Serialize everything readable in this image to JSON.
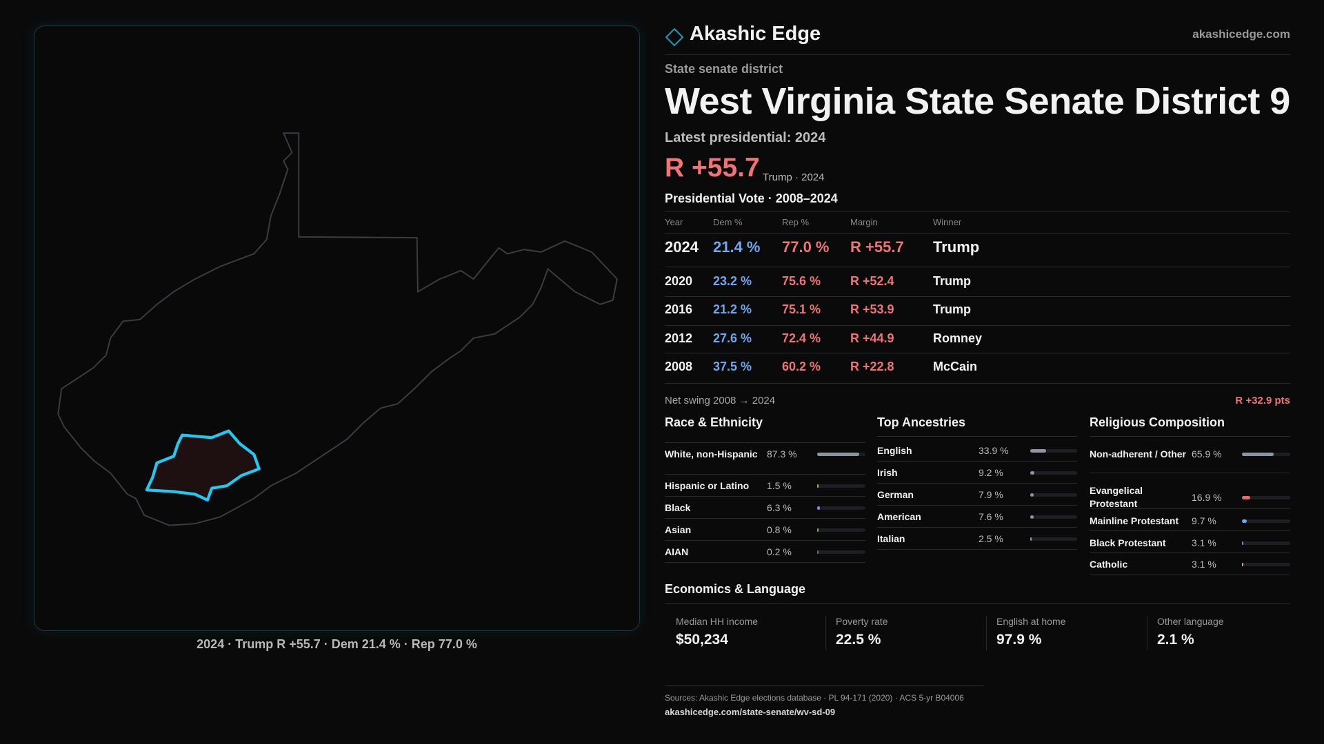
{
  "header": {
    "brand": "Akashic Edge",
    "domain": "akashicedge.com"
  },
  "map": {
    "caption": "2024 · Trump R +55.7 · Dem 21.4 % · Rep 77.0 %"
  },
  "district": {
    "kind": "State senate district",
    "title": "West Virginia State Senate District 9",
    "latest": "Latest presidential: 2024",
    "margin": "R +55.7",
    "margin_note": "Trump · 2024"
  },
  "presidential": {
    "title": "Presidential Vote · 2008–2024",
    "columns": [
      "Year",
      "Dem %",
      "Rep %",
      "Margin",
      "Winner"
    ],
    "rows": [
      [
        "2024",
        "21.4 %",
        "77.0 %",
        "R +55.7",
        "Trump"
      ],
      [
        "2020",
        "23.2 %",
        "75.6 %",
        "R +52.4",
        "Trump"
      ],
      [
        "2016",
        "21.2 %",
        "75.1 %",
        "R +53.9",
        "Trump"
      ],
      [
        "2012",
        "27.6 %",
        "72.4 %",
        "R +44.9",
        "Romney"
      ],
      [
        "2008",
        "37.5 %",
        "60.2 %",
        "R +22.8",
        "McCain"
      ]
    ]
  },
  "swing": {
    "label": "Net swing 2008 → 2024",
    "value": "R +32.9 pts"
  },
  "race": {
    "title": "Race & Ethnicity",
    "rows": [
      {
        "label": "White, non-Hispanic",
        "value": "87.3 %",
        "color": "#8d96a3"
      },
      {
        "label": "Hispanic or Latino",
        "value": "1.5 %",
        "color": "#c9a23c"
      },
      {
        "label": "Black",
        "value": "6.3 %",
        "color": "#8a7ff0"
      },
      {
        "label": "Asian",
        "value": "0.8 %",
        "color": "#4fbf7a"
      },
      {
        "label": "AIAN",
        "value": "0.2 %",
        "color": "#6a6f78"
      }
    ]
  },
  "ancestries": {
    "title": "Top Ancestries",
    "rows": [
      {
        "label": "English",
        "value": "33.9 %",
        "color": "#8d96a3"
      },
      {
        "label": "Irish",
        "value": "9.2 %",
        "color": "#8d96a3"
      },
      {
        "label": "German",
        "value": "7.9 %",
        "color": "#8d96a3"
      },
      {
        "label": "American",
        "value": "7.6 %",
        "color": "#8d96a3"
      },
      {
        "label": "Italian",
        "value": "2.5 %",
        "color": "#8d96a3"
      }
    ]
  },
  "religion": {
    "title": "Religious Composition",
    "rows": [
      {
        "label": "Non-adherent / Other",
        "value": "65.9 %",
        "color": "#8d96a3"
      },
      {
        "label": "Evangelical Protestant",
        "value": "16.9 %",
        "color": "#e86a6a"
      },
      {
        "label": "Mainline Protestant",
        "value": "9.7 %",
        "color": "#6fa8f0"
      },
      {
        "label": "Black Protestant",
        "value": "3.1 %",
        "color": "#8a7ff0"
      },
      {
        "label": "Catholic",
        "value": "3.1 %",
        "color": "#e0b040"
      }
    ]
  },
  "economics": {
    "title": "Economics & Language",
    "cards": [
      {
        "label": "Median HH income",
        "value": "$50,234"
      },
      {
        "label": "Poverty rate",
        "value": "22.5 %"
      },
      {
        "label": "English at home",
        "value": "97.9 %"
      },
      {
        "label": "Other language",
        "value": "2.1 %"
      }
    ]
  },
  "footer": {
    "sources": "Sources: Akashic Edge elections database · PL 94-171 (2020) · ACS 5-yr B04006",
    "url": "akashicedge.com/state-senate/wv-sd-09"
  }
}
